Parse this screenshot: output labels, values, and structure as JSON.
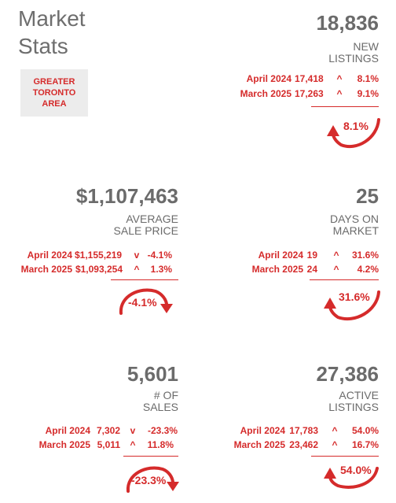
{
  "title_line1": "Market",
  "title_line2": "Stats",
  "region": {
    "line1": "GREATER",
    "line2": "TORONTO",
    "line3": "AREA"
  },
  "accent_color": "#d52b2b",
  "cards": {
    "new_listings": {
      "value": "18,836",
      "label1": "NEW",
      "label2": "LISTINGS",
      "rows": [
        {
          "period": "April 2024",
          "value": "17,418",
          "arrow": "up",
          "arrow_glyph": "^",
          "pct": "8.1%"
        },
        {
          "period": "March 2025",
          "value": "17,263",
          "arrow": "up",
          "arrow_glyph": "^",
          "pct": "9.1%"
        }
      ],
      "swoosh": "8.1%",
      "swoosh_direction": "up"
    },
    "avg_price": {
      "value": "$1,107,463",
      "label1": "AVERAGE",
      "label2": "SALE PRICE",
      "rows": [
        {
          "period": "April 2024",
          "value": "$1,155,219",
          "arrow": "down",
          "arrow_glyph": "v",
          "pct": "-4.1%"
        },
        {
          "period": "March 2025",
          "value": "$1,093,254",
          "arrow": "up",
          "arrow_glyph": "^",
          "pct": "1.3%"
        }
      ],
      "swoosh": "-4.1%",
      "swoosh_direction": "down"
    },
    "days_on_market": {
      "value": "25",
      "label1": "DAYS ON",
      "label2": "MARKET",
      "rows": [
        {
          "period": "April 2024",
          "value": "19",
          "arrow": "up",
          "arrow_glyph": "^",
          "pct": "31.6%"
        },
        {
          "period": "March 2025",
          "value": "24",
          "arrow": "up",
          "arrow_glyph": "^",
          "pct": "4.2%"
        }
      ],
      "swoosh": "31.6%",
      "swoosh_direction": "up"
    },
    "sales": {
      "value": "5,601",
      "label1": "# OF",
      "label2": "SALES",
      "rows": [
        {
          "period": "April 2024",
          "value": "7,302",
          "arrow": "down",
          "arrow_glyph": "v",
          "pct": "-23.3%"
        },
        {
          "period": "March 2025",
          "value": "5,011",
          "arrow": "up",
          "arrow_glyph": "^",
          "pct": "11.8%"
        }
      ],
      "swoosh": "-23.3%",
      "swoosh_direction": "down"
    },
    "active_listings": {
      "value": "27,386",
      "label1": "ACTIVE",
      "label2": "LISTINGS",
      "rows": [
        {
          "period": "April 2024",
          "value": "17,783",
          "arrow": "up",
          "arrow_glyph": "^",
          "pct": "54.0%"
        },
        {
          "period": "March 2025",
          "value": "23,462",
          "arrow": "up",
          "arrow_glyph": "^",
          "pct": "16.7%"
        }
      ],
      "swoosh": "54.0%",
      "swoosh_direction": "up"
    }
  }
}
